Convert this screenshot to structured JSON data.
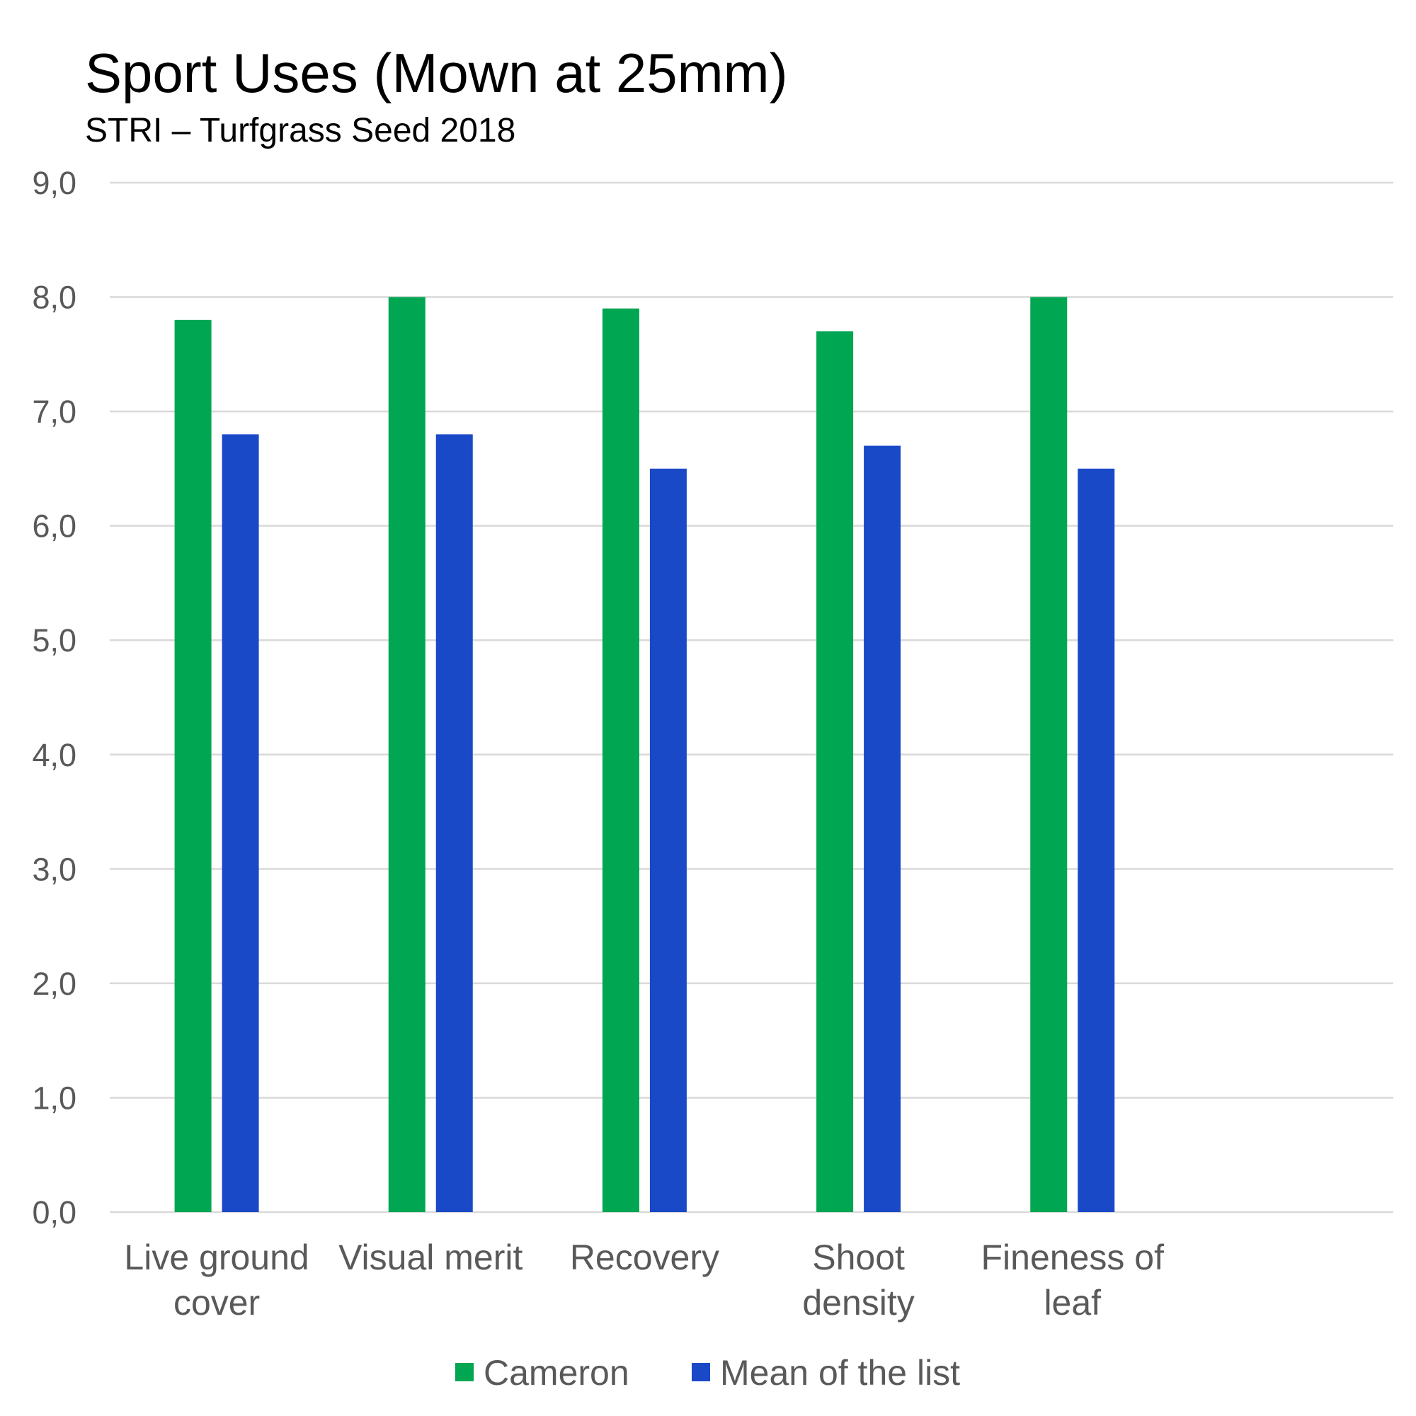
{
  "chart_data": {
    "type": "bar",
    "title": "Sport Uses (Mown at 25mm)",
    "subtitle": "STRI – Turfgrass Seed 2018",
    "categories": [
      [
        "Live ground",
        "cover"
      ],
      [
        "Visual merit"
      ],
      [
        "Recovery"
      ],
      [
        "Shoot",
        "density"
      ],
      [
        "Fineness of",
        "leaf"
      ]
    ],
    "series": [
      {
        "name": "Cameron",
        "values": [
          7.8,
          8.0,
          7.9,
          7.7,
          8.0
        ],
        "color": "#00a651"
      },
      {
        "name": "Mean of the list",
        "values": [
          6.8,
          6.8,
          6.5,
          6.7,
          6.5
        ],
        "color": "#1a49c8"
      }
    ],
    "ylim": [
      0,
      9
    ],
    "yticks": [
      "0,0",
      "1,0",
      "2,0",
      "3,0",
      "4,0",
      "5,0",
      "6,0",
      "7,0",
      "8,0",
      "9,0"
    ],
    "grid": true,
    "legend": "bottom"
  }
}
